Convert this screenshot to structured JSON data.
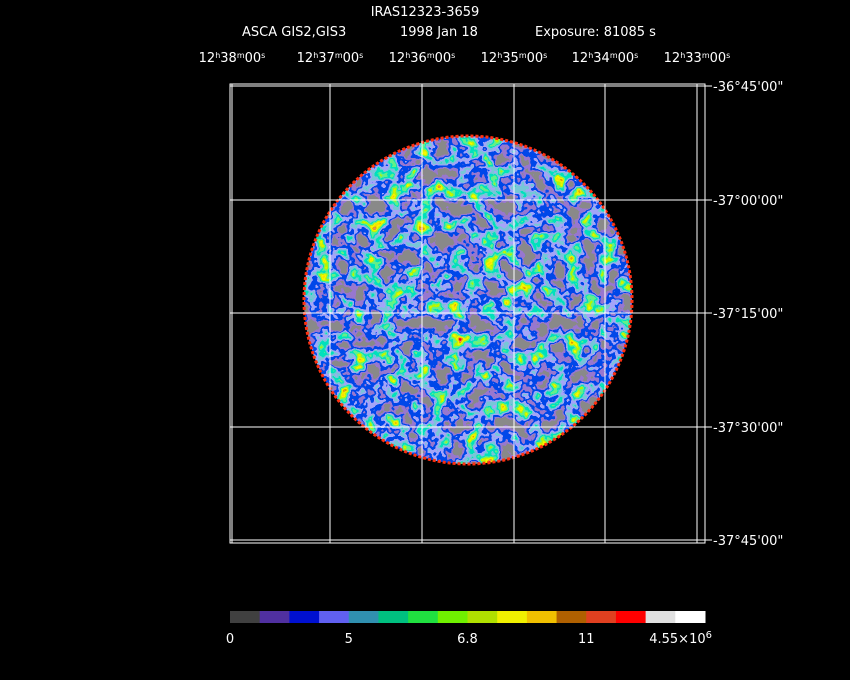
{
  "header": {
    "title": "IRAS12323-3659",
    "instrument": "ASCA GIS2,GIS3",
    "date": "1998 Jan 18",
    "exposure": "Exposure: 81085 s"
  },
  "ra_labels": [
    [
      "12",
      "h",
      "38",
      "m",
      "00",
      "s"
    ],
    [
      "12",
      "h",
      "37",
      "m",
      "00",
      "s"
    ],
    [
      "12",
      "h",
      "36",
      "m",
      "00",
      "s"
    ],
    [
      "12",
      "h",
      "35",
      "m",
      "00",
      "s"
    ],
    [
      "12",
      "h",
      "34",
      "m",
      "00",
      "s"
    ],
    [
      "12",
      "h",
      "33",
      "m",
      "00",
      "s"
    ]
  ],
  "dec_labels": [
    "-36°45'00\"",
    "-37°00'00\"",
    "-37°15'00\"",
    "-37°30'00\"",
    "-37°45'00\""
  ],
  "colorbar": {
    "colors": [
      "#404040",
      "#5030a0",
      "#0010d0",
      "#6060f0",
      "#3090b0",
      "#00c080",
      "#20e040",
      "#70f000",
      "#b0e000",
      "#f0f000",
      "#f0c000",
      "#b06000",
      "#e04020",
      "#ff0000",
      "#e0e0e0",
      "#ffffff"
    ],
    "labels": [
      [
        "0"
      ],
      [
        "5"
      ],
      [
        "6.8"
      ],
      [
        "11"
      ],
      [
        "4.55×10",
        "6"
      ]
    ]
  }
}
